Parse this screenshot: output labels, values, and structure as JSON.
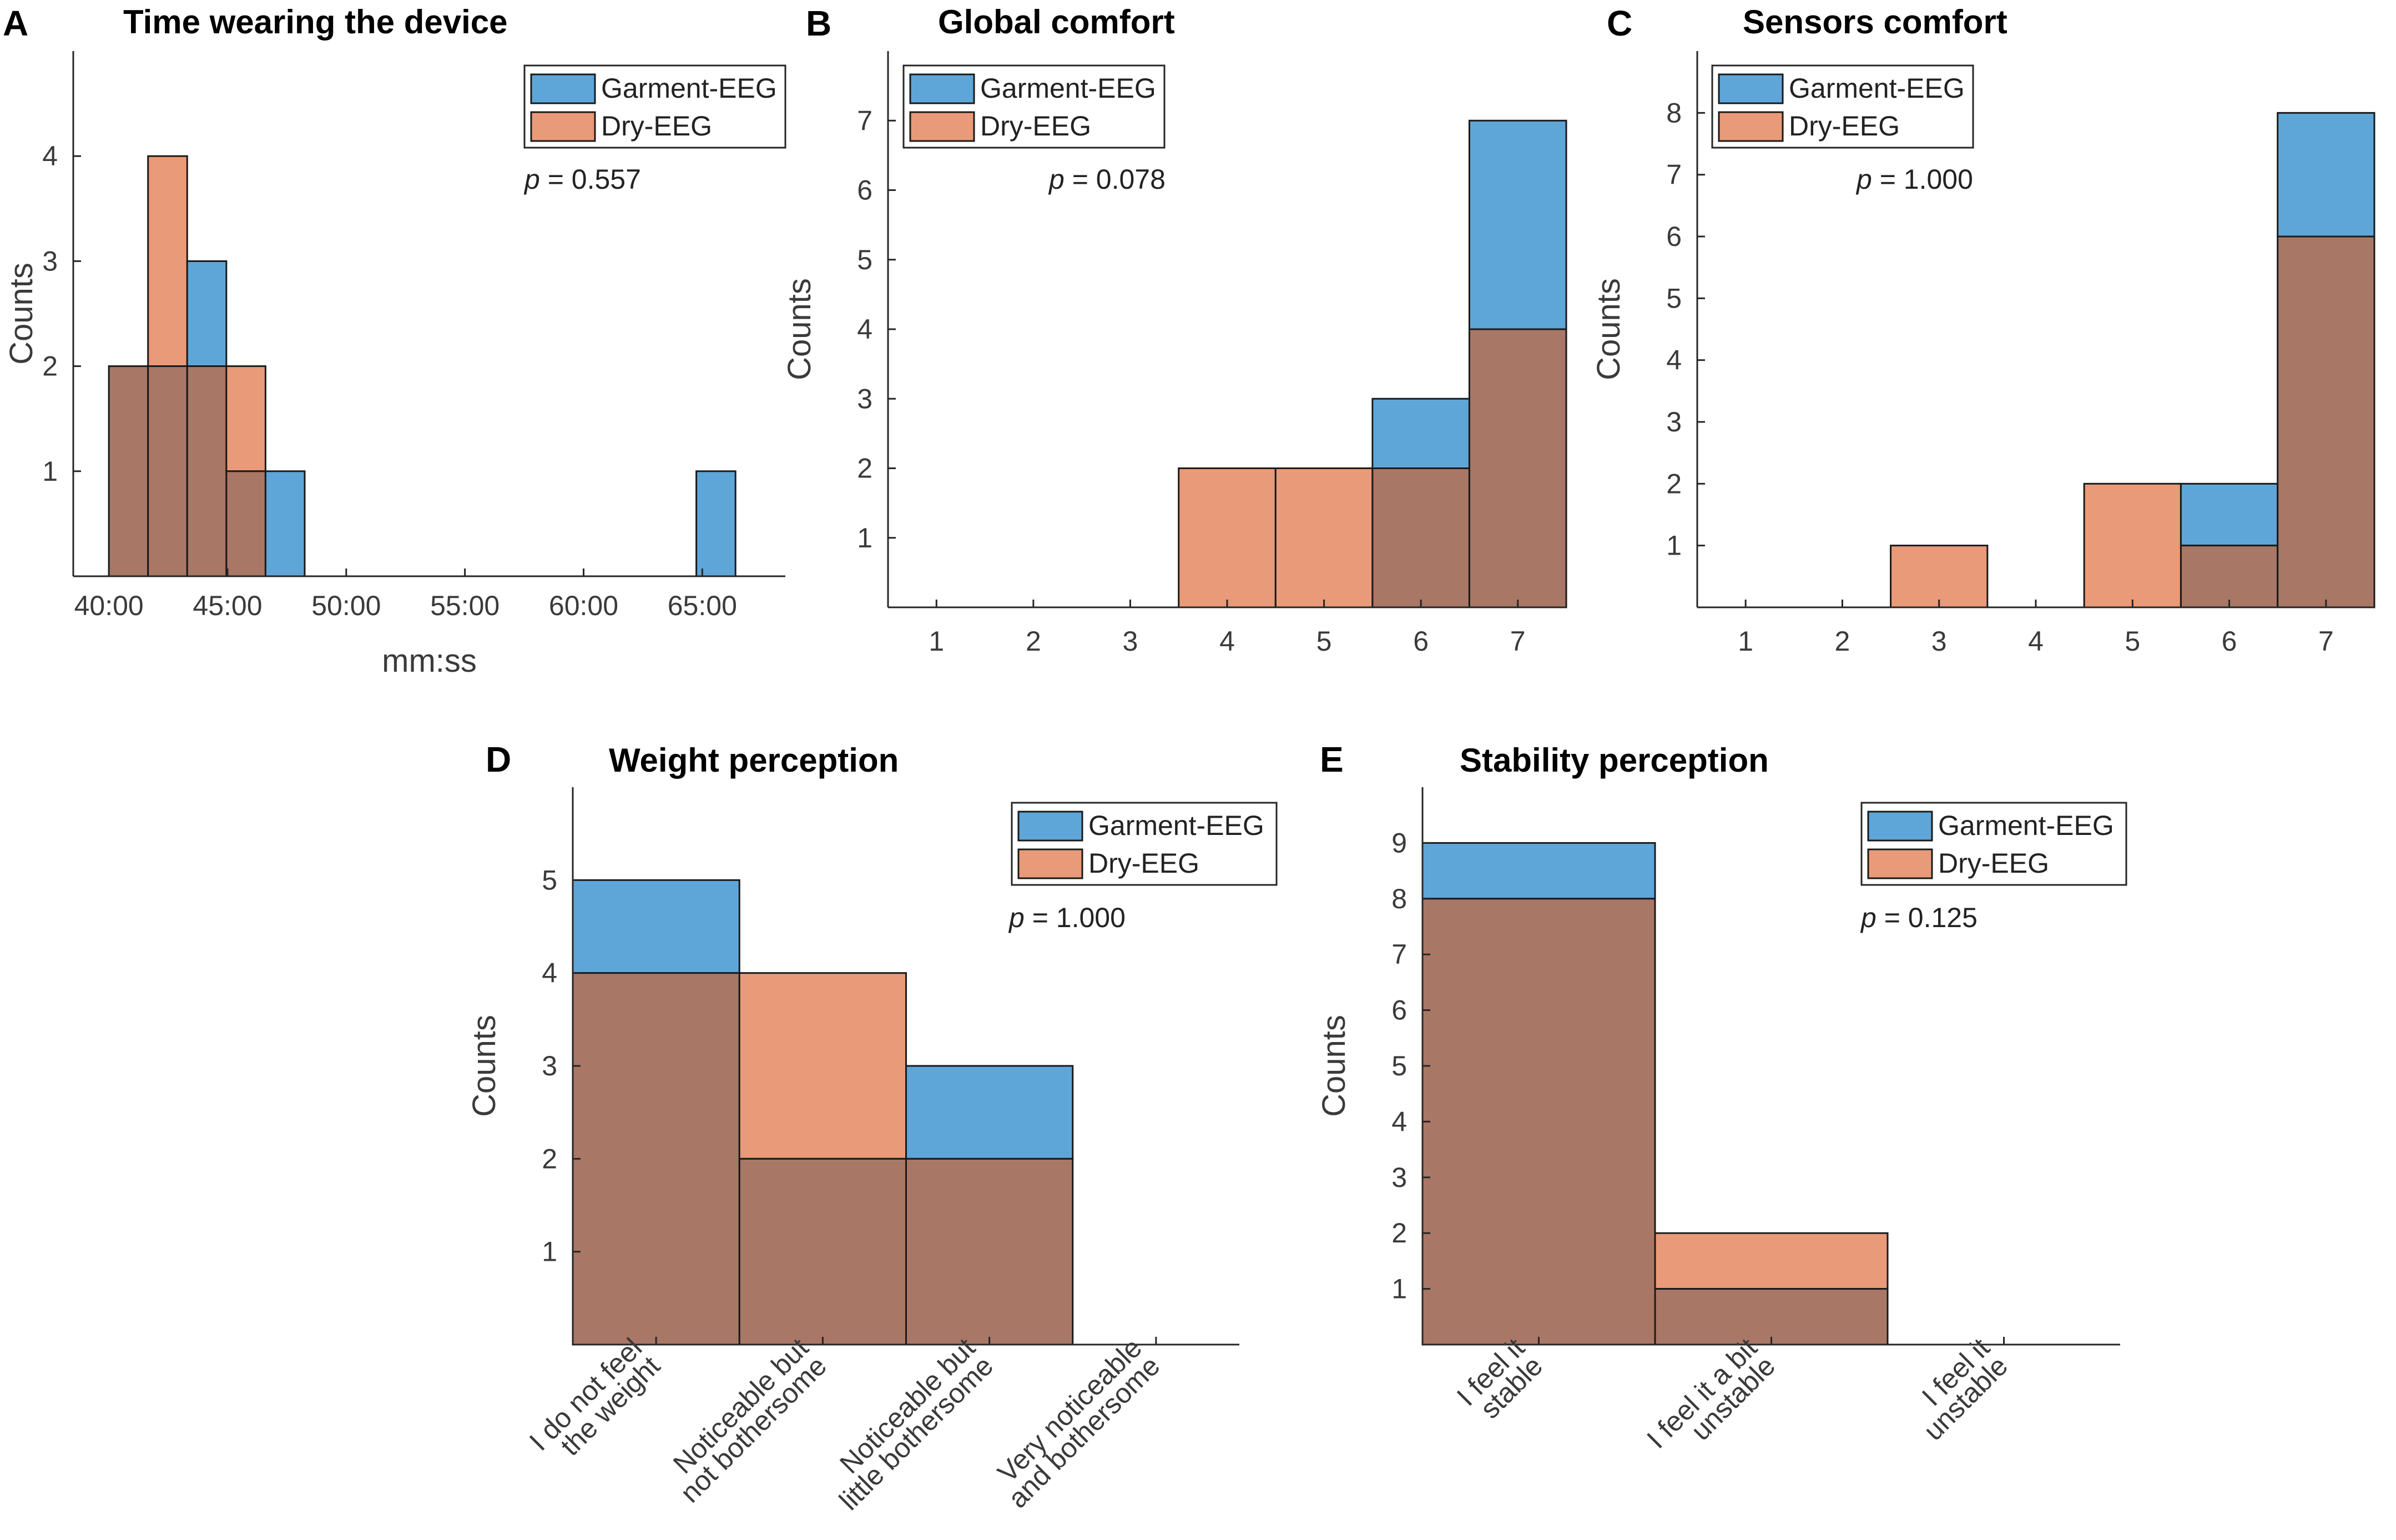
{
  "colors": {
    "garment": "#5fa6d8",
    "dry": "#e99a78",
    "overlap": "#a97766",
    "axis": "#262626"
  },
  "legend": {
    "series_a": "Garment-EEG",
    "series_b": "Dry-EEG"
  },
  "chart_data": [
    {
      "panel": "A",
      "title": "Time wearing the device",
      "type": "histogram",
      "xlabel": "mm:ss",
      "ylabel": "Counts",
      "xlim": [
        38.5,
        68.5
      ],
      "ylim": [
        0,
        5
      ],
      "xtick_values": [
        40,
        45,
        50,
        55,
        60,
        65
      ],
      "xtick_labels": [
        "40:00",
        "45:00",
        "50:00",
        "55:00",
        "60:00",
        "65:00"
      ],
      "yticks": [
        1,
        2,
        3,
        4
      ],
      "bin_edges": [
        40.0,
        41.65,
        43.3,
        44.95,
        46.6,
        48.25,
        64.75,
        66.4
      ],
      "series": [
        {
          "name": "Garment-EEG",
          "values": [
            2,
            2,
            3,
            1,
            1,
            0,
            1
          ]
        },
        {
          "name": "Dry-EEG",
          "values": [
            2,
            4,
            2,
            2,
            0,
            0,
            0
          ]
        }
      ],
      "p_prefix": "p",
      "p_text": " = 0.557",
      "legend_pos": "top-right"
    },
    {
      "panel": "B",
      "title": "Global comfort",
      "type": "histogram",
      "xlabel": "",
      "ylabel": "Counts",
      "xlim": [
        0.5,
        7.5
      ],
      "ylim": [
        0,
        8
      ],
      "categories": [
        "1",
        "2",
        "3",
        "4",
        "5",
        "6",
        "7"
      ],
      "yticks": [
        1,
        2,
        3,
        4,
        5,
        6,
        7
      ],
      "series": [
        {
          "name": "Garment-EEG",
          "values": [
            0,
            0,
            0,
            0,
            0,
            3,
            7
          ]
        },
        {
          "name": "Dry-EEG",
          "values": [
            0,
            0,
            0,
            2,
            2,
            2,
            4
          ]
        }
      ],
      "p_prefix": "p",
      "p_text": " = 0.078",
      "legend_pos": "top-left"
    },
    {
      "panel": "C",
      "title": "Sensors comfort",
      "type": "histogram",
      "xlabel": "",
      "ylabel": "Counts",
      "xlim": [
        0.5,
        7.5
      ],
      "ylim": [
        0,
        9
      ],
      "categories": [
        "1",
        "2",
        "3",
        "4",
        "5",
        "6",
        "7"
      ],
      "yticks": [
        1,
        2,
        3,
        4,
        5,
        6,
        7,
        8
      ],
      "series": [
        {
          "name": "Garment-EEG",
          "values": [
            0,
            0,
            0,
            0,
            0,
            2,
            8
          ]
        },
        {
          "name": "Dry-EEG",
          "values": [
            0,
            0,
            1,
            0,
            2,
            1,
            6
          ]
        }
      ],
      "p_prefix": "p",
      "p_text": " = 1.000",
      "legend_pos": "top-left"
    },
    {
      "panel": "D",
      "title": "Weight perception",
      "type": "histogram",
      "xlabel": "",
      "ylabel": "Counts",
      "xlim": [
        0.5,
        4.5
      ],
      "ylim": [
        0,
        6
      ],
      "categories": [
        [
          "I do not feel",
          "the weight"
        ],
        [
          "Noticeable but",
          "not bothersome"
        ],
        [
          "Noticeable but",
          "little bothersome"
        ],
        [
          "Very noticeable",
          "and bothersome"
        ]
      ],
      "yticks": [
        1,
        2,
        3,
        4,
        5
      ],
      "series": [
        {
          "name": "Garment-EEG",
          "values": [
            5,
            2,
            3,
            0
          ]
        },
        {
          "name": "Dry-EEG",
          "values": [
            4,
            4,
            2,
            0
          ]
        }
      ],
      "p_prefix": "p",
      "p_text": " = 1.000",
      "legend_pos": "top-right"
    },
    {
      "panel": "E",
      "title": "Stability perception",
      "type": "histogram",
      "xlabel": "",
      "ylabel": "Counts",
      "xlim": [
        0.5,
        3.5
      ],
      "ylim": [
        0,
        10
      ],
      "categories": [
        [
          "I feel it",
          "stable"
        ],
        [
          "I feel it a bit",
          "unstable"
        ],
        [
          "I feel it",
          "unstable"
        ]
      ],
      "yticks": [
        1,
        2,
        3,
        4,
        5,
        6,
        7,
        8,
        9
      ],
      "series": [
        {
          "name": "Garment-EEG",
          "values": [
            9,
            1,
            0
          ]
        },
        {
          "name": "Dry-EEG",
          "values": [
            8,
            2,
            0
          ]
        }
      ],
      "p_prefix": "p",
      "p_text": " = 0.125",
      "legend_pos": "top-right"
    }
  ]
}
